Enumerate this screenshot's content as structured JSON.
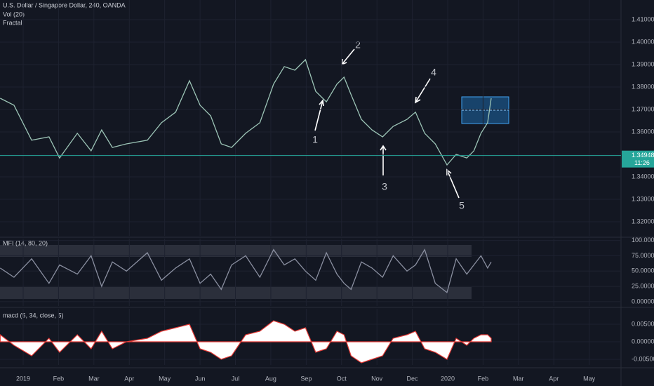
{
  "chart_data": [
    {
      "type": "line",
      "pane": "price",
      "title": "U.S. Dollar / Singapore Dollar, 240, OANDA",
      "subtitles": [
        "Vol (20)",
        "Fractal"
      ],
      "name": "close",
      "color": "#9cc4b6",
      "x": [
        -0.65,
        -0.26,
        0.24,
        0.73,
        1.03,
        1.53,
        1.92,
        2.22,
        2.52,
        2.92,
        3.51,
        3.91,
        4.31,
        4.7,
        5.0,
        5.3,
        5.6,
        5.89,
        6.29,
        6.69,
        7.08,
        7.38,
        7.68,
        7.98,
        8.27,
        8.57,
        8.87,
        9.07,
        9.27,
        9.56,
        9.86,
        10.16,
        10.46,
        10.85,
        11.09,
        11.35,
        11.65,
        11.98,
        12.24,
        12.54,
        12.74,
        12.94,
        13.13,
        13.23
      ],
      "values": [
        1.375,
        1.3719,
        1.3563,
        1.3578,
        1.3484,
        1.3594,
        1.3516,
        1.3609,
        1.3531,
        1.3547,
        1.3563,
        1.3641,
        1.3688,
        1.3828,
        1.3719,
        1.3672,
        1.3547,
        1.3531,
        1.3594,
        1.3641,
        1.3813,
        1.3891,
        1.3875,
        1.3922,
        1.3781,
        1.3734,
        1.3813,
        1.3844,
        1.3766,
        1.3656,
        1.3609,
        1.3578,
        1.3625,
        1.3656,
        1.3688,
        1.3594,
        1.3547,
        1.3453,
        1.35,
        1.3484,
        1.3516,
        1.3594,
        1.3641,
        1.375
      ],
      "current_price": 1.34948,
      "countdown": "11:26",
      "annotations": [
        {
          "text": "1"
        },
        {
          "text": "2"
        },
        {
          "text": "3"
        },
        {
          "text": "4"
        },
        {
          "text": "5"
        }
      ],
      "xlim": [
        -0.655,
        16.9
      ],
      "xticks": [
        {
          "value": 0,
          "label": "2019"
        },
        {
          "value": 1,
          "label": "Feb"
        },
        {
          "value": 2,
          "label": "Mar"
        },
        {
          "value": 3,
          "label": "Apr"
        },
        {
          "value": 4,
          "label": "May"
        },
        {
          "value": 5,
          "label": "Jun"
        },
        {
          "value": 6,
          "label": "Jul"
        },
        {
          "value": 7,
          "label": "Aug"
        },
        {
          "value": 8,
          "label": "Sep"
        },
        {
          "value": 9,
          "label": "Oct"
        },
        {
          "value": 10,
          "label": "Nov"
        },
        {
          "value": 11,
          "label": "Dec"
        },
        {
          "value": 12,
          "label": "2020"
        },
        {
          "value": 13,
          "label": "Feb"
        },
        {
          "value": 14,
          "label": "Mar"
        },
        {
          "value": 15,
          "label": "Apr"
        },
        {
          "value": 16,
          "label": "May"
        }
      ],
      "ylim": [
        1.31375,
        1.41875
      ],
      "yticks": [
        {
          "value": 1.32,
          "label": "1.32000"
        },
        {
          "value": 1.33,
          "label": "1.33000"
        },
        {
          "value": 1.34,
          "label": "1.34000"
        },
        {
          "value": 1.35,
          "label": "1.35000"
        },
        {
          "value": 1.36,
          "label": "1.36000"
        },
        {
          "value": 1.37,
          "label": "1.37000"
        },
        {
          "value": 1.38,
          "label": "1.38000"
        },
        {
          "value": 1.39,
          "label": "1.39000"
        },
        {
          "value": 1.4,
          "label": "1.40000"
        },
        {
          "value": 1.41,
          "label": "1.41000"
        }
      ],
      "grid": true
    },
    {
      "type": "line",
      "pane": "mfi",
      "title": "MFI (14, 80, 20)",
      "color": "#8a8fa0",
      "x": [
        -0.65,
        -0.26,
        0.24,
        0.73,
        1.03,
        1.53,
        1.92,
        2.22,
        2.52,
        2.92,
        3.51,
        3.91,
        4.31,
        4.7,
        5.0,
        5.3,
        5.6,
        5.89,
        6.29,
        6.69,
        7.08,
        7.38,
        7.68,
        7.98,
        8.27,
        8.57,
        8.87,
        9.07,
        9.27,
        9.56,
        9.86,
        10.16,
        10.46,
        10.85,
        11.09,
        11.35,
        11.65,
        11.98,
        12.24,
        12.54,
        12.74,
        12.94,
        13.13,
        13.23
      ],
      "values": [
        55,
        40,
        70,
        30,
        60,
        45,
        75,
        25,
        65,
        50,
        80,
        35,
        55,
        70,
        30,
        45,
        20,
        60,
        75,
        40,
        85,
        60,
        70,
        50,
        35,
        80,
        45,
        30,
        20,
        65,
        55,
        40,
        75,
        50,
        60,
        85,
        30,
        15,
        70,
        45,
        60,
        75,
        55,
        65
      ],
      "xlim": [
        -0.655,
        16.9
      ],
      "ylim": [
        -7,
        103
      ],
      "yticks": [
        {
          "value": 0,
          "label": "0.00000"
        },
        {
          "value": 25,
          "label": "25.00000"
        },
        {
          "value": 50,
          "label": "50.00000"
        },
        {
          "value": 75,
          "label": "75.00000"
        },
        {
          "value": 100,
          "label": "100.00000"
        }
      ],
      "grid": true
    },
    {
      "type": "area",
      "pane": "macd",
      "title": "macd (5, 34, close, 5)",
      "color": "#ffffff",
      "x": [
        -0.65,
        -0.26,
        0.24,
        0.73,
        1.03,
        1.53,
        1.92,
        2.22,
        2.52,
        2.92,
        3.51,
        3.91,
        4.31,
        4.7,
        5.0,
        5.3,
        5.6,
        5.89,
        6.29,
        6.69,
        7.08,
        7.38,
        7.68,
        7.98,
        8.27,
        8.57,
        8.87,
        9.07,
        9.27,
        9.56,
        9.86,
        10.16,
        10.46,
        10.85,
        11.09,
        11.35,
        11.65,
        11.98,
        12.24,
        12.54,
        12.74,
        12.94,
        13.13,
        13.23
      ],
      "values": [
        0.002,
        -0.001,
        -0.004,
        0.001,
        -0.003,
        0.002,
        -0.002,
        0.003,
        -0.002,
        0.0,
        0.001,
        0.003,
        0.004,
        0.005,
        -0.002,
        -0.003,
        -0.005,
        -0.004,
        0.002,
        0.003,
        0.006,
        0.005,
        0.003,
        0.004,
        -0.003,
        -0.002,
        0.003,
        0.002,
        -0.004,
        -0.006,
        -0.005,
        -0.004,
        0.001,
        0.002,
        0.003,
        -0.002,
        -0.003,
        -0.005,
        0.001,
        -0.001,
        0.001,
        0.002,
        0.002,
        0.001
      ],
      "xlim": [
        -0.655,
        16.9
      ],
      "ylim": [
        -0.0066,
        0.0094
      ],
      "yticks": [
        {
          "value": -0.005,
          "label": "-0.00500"
        },
        {
          "value": 0,
          "label": "0.00000"
        },
        {
          "value": 0.005,
          "label": "0.00500"
        }
      ],
      "grid": true
    }
  ]
}
